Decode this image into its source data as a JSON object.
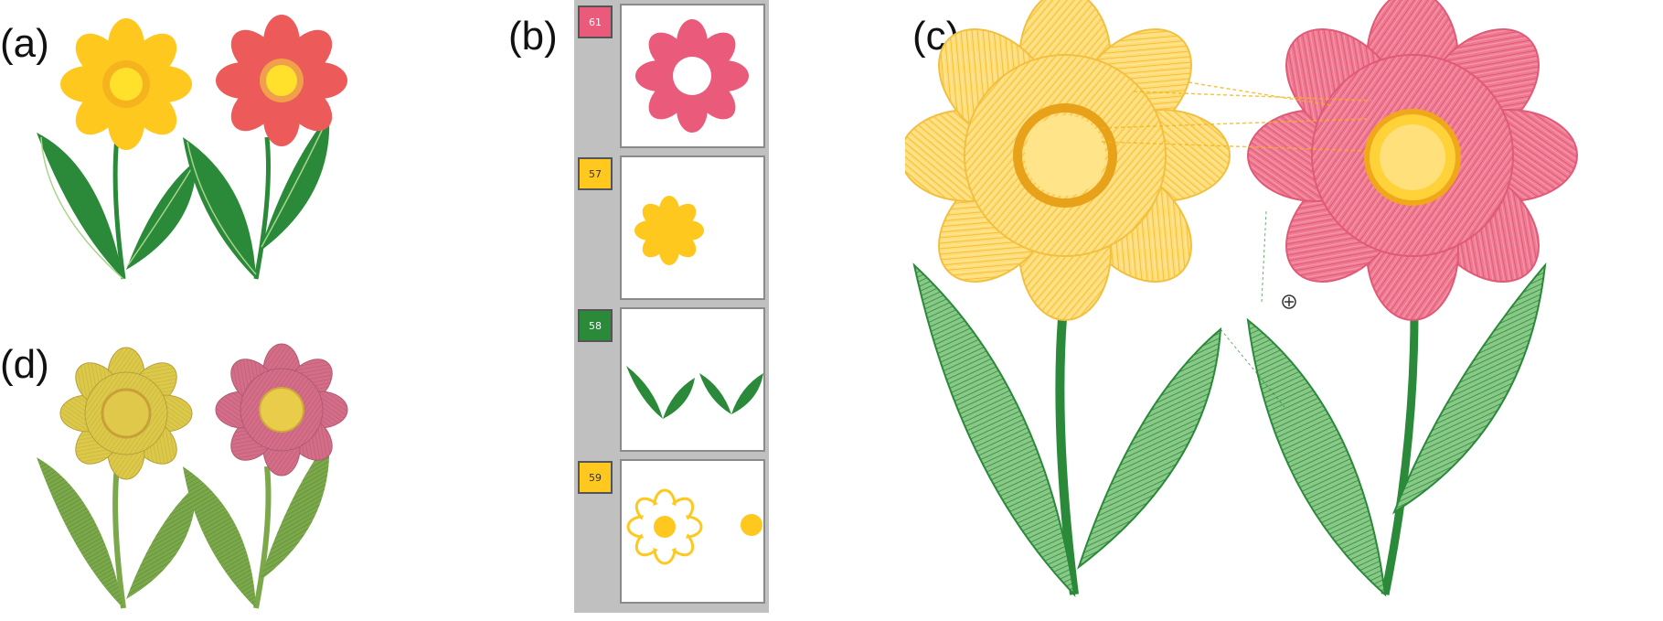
{
  "labels": {
    "a": "(a)",
    "b": "(b)",
    "c": "(c)",
    "d": "(d)"
  },
  "colors": {
    "yellow": "#ffc81e",
    "yellow_center": "#ffe02a",
    "red": "#ec5a5a",
    "pink": "#e85a78",
    "leaf": "#2a8a3a",
    "stem": "#2a8a3a",
    "emb_yellow": "#dcc94a",
    "emb_pink": "#d46e88",
    "emb_leaf": "#7aa84a",
    "stitch_yellow": "#ffd24a",
    "stitch_pink": "#ee7a92",
    "stitch_green": "#3a9a4a"
  },
  "layers": [
    {
      "number": "61",
      "color": "#ea5a7a",
      "text_color": "#ffffff",
      "content": "pink-flower-ring"
    },
    {
      "number": "57",
      "color": "#ffc81e",
      "text_color": "#333333",
      "content": "yellow-flower"
    },
    {
      "number": "58",
      "color": "#2a8a3a",
      "text_color": "#ffffff",
      "content": "leaves"
    },
    {
      "number": "59",
      "color": "#ffc81e",
      "text_color": "#333333",
      "content": "flower-outline-and-dot"
    }
  ]
}
